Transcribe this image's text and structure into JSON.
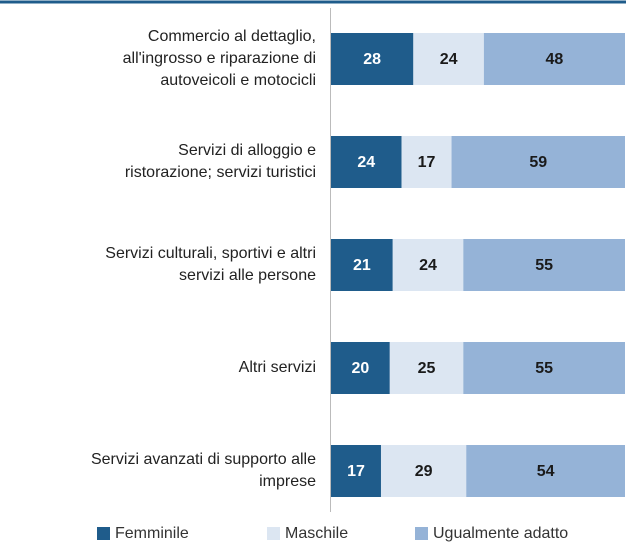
{
  "chart_data": {
    "type": "stacked-bar-horizontal",
    "categories": [
      "Commercio al dettaglio,\nall'ingrosso e riparazione di\nautoveicoli e motocicli",
      "Servizi di alloggio e\nristorazione; servizi turistici",
      "Servizi culturali, sportivi e altri\nservizi alle persone",
      "Altri servizi",
      "Servizi avanzati di supporto alle\nimprese"
    ],
    "series": [
      {
        "name": "Femminile",
        "color": "#1f5c8b",
        "values": [
          28,
          24,
          21,
          20,
          17
        ]
      },
      {
        "name": "Maschile",
        "color": "#dce6f2",
        "values": [
          24,
          17,
          24,
          25,
          29
        ]
      },
      {
        "name": "Ugualmente adatto",
        "color": "#95b3d7",
        "values": [
          48,
          59,
          55,
          55,
          54
        ]
      }
    ],
    "xlim": [
      0,
      100
    ]
  }
}
